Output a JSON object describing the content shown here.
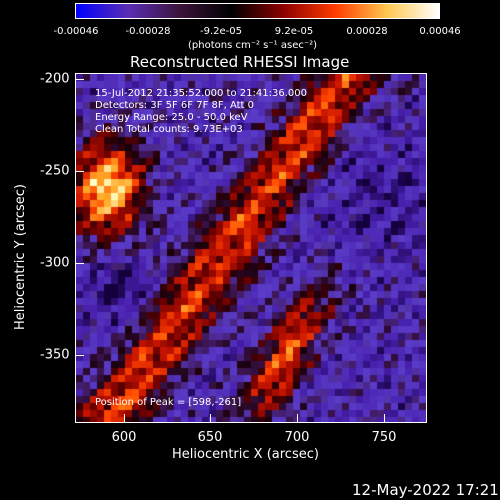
{
  "colorbar": {
    "ticks": [
      "-0.00046",
      "-0.00028",
      "-9.2e-05",
      "9.2e-05",
      "0.00028",
      "0.00046"
    ],
    "units": "(photons cm⁻² s⁻¹ asec⁻²)",
    "colors": [
      "#0000ff",
      "#5a2db4",
      "#3c143c",
      "#000000",
      "#8c0000",
      "#ff3c00",
      "#ffc850",
      "#ffffff"
    ]
  },
  "plot": {
    "title": "Reconstructed RHESSI Image",
    "info_lines": [
      "15-Jul-2012 21:35:52.000 to 21:41:36.000",
      "Detectors: 3F 5F 6F 7F 8F, Att 0",
      "Energy Range: 25.0 - 50.0 keV",
      "Clean     Total counts: 9.73E+03"
    ],
    "peak_text": "Position of Peak = [598,-261]",
    "xlabel": "Heliocentric X (arcsec)",
    "ylabel": "Heliocentric Y (arcsec)",
    "xticks": [
      "600",
      "650",
      "700",
      "750"
    ],
    "yticks": [
      "-200",
      "-250",
      "-300",
      "-350"
    ],
    "xlim": [
      574,
      766
    ],
    "ylim": [
      -390,
      -197
    ]
  },
  "footer": {
    "date": "12-May-2022 17:21"
  }
}
